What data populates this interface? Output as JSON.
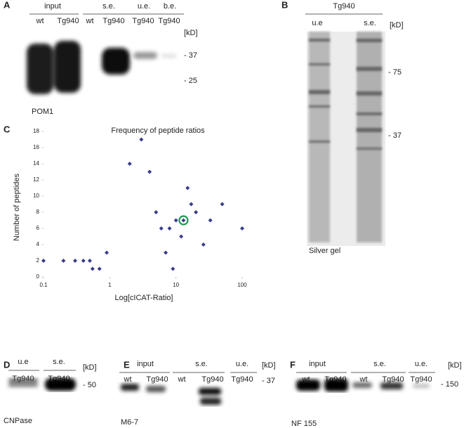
{
  "panels": {
    "A": {
      "letter": "A",
      "groups": [
        "input",
        "s.e.",
        "u.e.",
        "b.e."
      ],
      "lanes": [
        "wt",
        "Tg940",
        "wt",
        "Tg940",
        "Tg940",
        "Tg940"
      ],
      "unit": "[kD]",
      "markers": [
        "- 37",
        "- 25"
      ],
      "antibody": "POM1"
    },
    "B": {
      "letter": "B",
      "group": "Tg940",
      "lanes": [
        "u.e",
        "s.e."
      ],
      "unit": "[kD]",
      "markers": [
        "- 75",
        "- 37"
      ],
      "caption": "Silver gel"
    },
    "C": {
      "letter": "C"
    },
    "D": {
      "letter": "D",
      "groups": [
        "u.e",
        "s.e."
      ],
      "lanes": [
        "Tg940",
        "Tg940"
      ],
      "unit": "[kD]",
      "markers": [
        "- 50"
      ],
      "antibody": "CNPase"
    },
    "E": {
      "letter": "E",
      "groups": [
        "input",
        "s.e.",
        "u.e."
      ],
      "lanes": [
        "wt",
        "Tg940",
        "wt",
        "Tg940",
        "Tg940"
      ],
      "unit": "[kD]",
      "markers": [
        "- 37"
      ],
      "antibody": "M6-7"
    },
    "F": {
      "letter": "F",
      "groups": [
        "input",
        "s.e.",
        "u.e."
      ],
      "lanes": [
        "wt",
        "Tg940",
        "wt",
        "Tg940",
        "Tg940"
      ],
      "unit": "[kD]",
      "markers": [
        "- 150"
      ],
      "antibody": "NF 155"
    }
  },
  "chart_data": {
    "type": "scatter",
    "title": "Frequency of peptide ratios",
    "x_label": "Log[cICAT-Ratio]",
    "y_label": "Number of peptides",
    "x": [
      0.1,
      0.2,
      0.3,
      0.4,
      0.5,
      0.55,
      0.7,
      0.9,
      2,
      3,
      4,
      5,
      6,
      7,
      8,
      9,
      10,
      12,
      13,
      15,
      17,
      20,
      26,
      33,
      50,
      100
    ],
    "values": [
      2,
      2,
      2,
      2,
      2,
      1,
      1,
      3,
      14,
      17,
      13,
      8,
      6,
      3,
      6,
      1,
      7,
      5,
      7,
      11,
      9,
      8,
      4,
      7,
      9,
      6
    ],
    "color": "#3b3b8e",
    "highlight_index": 18,
    "highlight_color": "#1e9a4e",
    "x_log": true,
    "xlim": [
      0.1,
      100
    ],
    "xticks": [
      0.1,
      1,
      10,
      100
    ],
    "ylim": [
      0,
      18
    ],
    "yticks": [
      0,
      2,
      4,
      6,
      8,
      10,
      12,
      14,
      16,
      18
    ]
  }
}
